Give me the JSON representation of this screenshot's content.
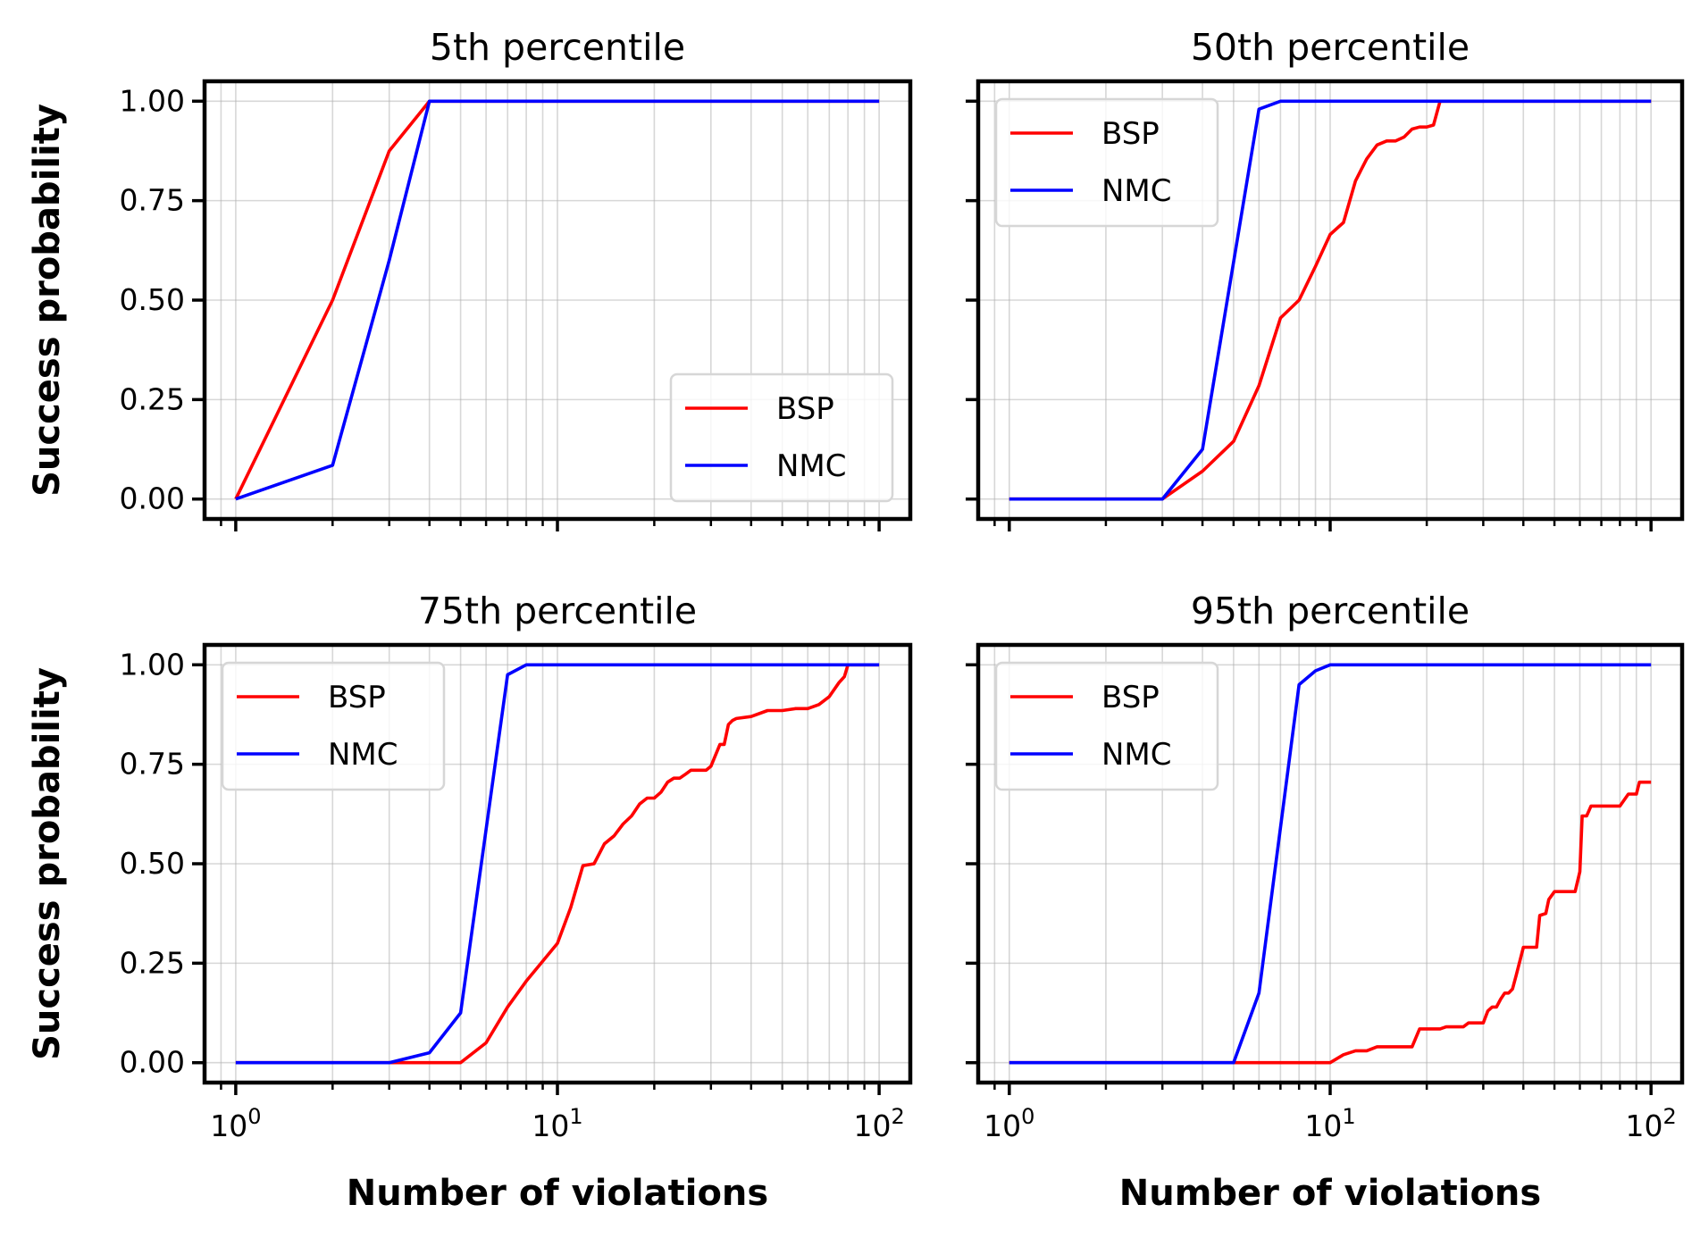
{
  "figure": {
    "ylabel": "Success probability",
    "xlabel": "Number of violations",
    "y_tick_labels": [
      "0.00",
      "0.25",
      "0.50",
      "0.75",
      "1.00"
    ],
    "x_tick_labels": [
      "10^0",
      "10^1",
      "10^2"
    ],
    "colors": {
      "BSP": "#ff0000",
      "NMC": "#0000ff"
    }
  },
  "chart_data": [
    {
      "type": "line",
      "title": "5th percentile",
      "xscale": "log",
      "xlim": [
        0.8,
        125
      ],
      "ylim": [
        -0.05,
        1.05
      ],
      "grid": true,
      "legend_loc": "lower-right",
      "series": [
        {
          "name": "BSP",
          "x": [
            1,
            2,
            3,
            4,
            100
          ],
          "y": [
            0.0,
            0.5,
            0.875,
            1.0,
            1.0
          ]
        },
        {
          "name": "NMC",
          "x": [
            1,
            2,
            3,
            4,
            100
          ],
          "y": [
            0.0,
            0.085,
            0.6,
            1.0,
            1.0
          ]
        }
      ]
    },
    {
      "type": "line",
      "title": "50th percentile",
      "xscale": "log",
      "xlim": [
        0.8,
        125
      ],
      "ylim": [
        -0.05,
        1.05
      ],
      "grid": true,
      "legend_loc": "upper-left",
      "series": [
        {
          "name": "BSP",
          "x": [
            1,
            3,
            4,
            5,
            6,
            7,
            8,
            9,
            10,
            11,
            12,
            13,
            14,
            15,
            16,
            17,
            18,
            19,
            20,
            21,
            22,
            100
          ],
          "y": [
            0.0,
            0.0,
            0.07,
            0.145,
            0.285,
            0.455,
            0.5,
            0.585,
            0.665,
            0.695,
            0.8,
            0.855,
            0.89,
            0.9,
            0.9,
            0.91,
            0.93,
            0.935,
            0.935,
            0.94,
            1.0,
            1.0
          ]
        },
        {
          "name": "NMC",
          "x": [
            1,
            3,
            4,
            6,
            7,
            100
          ],
          "y": [
            0.0,
            0.0,
            0.125,
            0.98,
            1.0,
            1.0
          ]
        }
      ]
    },
    {
      "type": "line",
      "title": "75th percentile",
      "xscale": "log",
      "xlim": [
        0.8,
        125
      ],
      "ylim": [
        -0.05,
        1.05
      ],
      "grid": true,
      "legend_loc": "upper-left",
      "series": [
        {
          "name": "BSP",
          "x": [
            1,
            5,
            6,
            7,
            8,
            9,
            10,
            11,
            12,
            13,
            14,
            15,
            16,
            17,
            18,
            19,
            20,
            21,
            22,
            23,
            24,
            25,
            26,
            27,
            28,
            29,
            30,
            32,
            33,
            34,
            35,
            36,
            40,
            45,
            50,
            55,
            60,
            65,
            70,
            75,
            78,
            80,
            100
          ],
          "y": [
            0.0,
            0.0,
            0.05,
            0.14,
            0.205,
            0.255,
            0.3,
            0.39,
            0.495,
            0.5,
            0.55,
            0.57,
            0.6,
            0.62,
            0.65,
            0.665,
            0.665,
            0.68,
            0.705,
            0.715,
            0.715,
            0.725,
            0.735,
            0.735,
            0.735,
            0.735,
            0.745,
            0.8,
            0.8,
            0.85,
            0.86,
            0.865,
            0.87,
            0.885,
            0.885,
            0.89,
            0.89,
            0.9,
            0.92,
            0.955,
            0.97,
            1.0,
            1.0
          ]
        },
        {
          "name": "NMC",
          "x": [
            1,
            3,
            4,
            5,
            7,
            8,
            100
          ],
          "y": [
            0.0,
            0.0,
            0.025,
            0.125,
            0.975,
            1.0,
            1.0
          ]
        }
      ]
    },
    {
      "type": "line",
      "title": "95th percentile",
      "xscale": "log",
      "xlim": [
        0.8,
        125
      ],
      "ylim": [
        -0.05,
        1.05
      ],
      "grid": true,
      "legend_loc": "upper-left",
      "series": [
        {
          "name": "BSP",
          "x": [
            1,
            10,
            11,
            12,
            13,
            14,
            15,
            17,
            18,
            19,
            22,
            23,
            26,
            27,
            30,
            31,
            32,
            33,
            34,
            35,
            36,
            37,
            38,
            40,
            42,
            44,
            45,
            47,
            48,
            50,
            52,
            55,
            58,
            60,
            61,
            63,
            65,
            70,
            80,
            85,
            90,
            92,
            95,
            100
          ],
          "y": [
            0.0,
            0.0,
            0.02,
            0.03,
            0.03,
            0.04,
            0.04,
            0.04,
            0.04,
            0.085,
            0.085,
            0.09,
            0.09,
            0.1,
            0.1,
            0.13,
            0.14,
            0.14,
            0.16,
            0.175,
            0.175,
            0.185,
            0.22,
            0.29,
            0.29,
            0.29,
            0.37,
            0.375,
            0.41,
            0.43,
            0.43,
            0.43,
            0.43,
            0.48,
            0.62,
            0.62,
            0.645,
            0.645,
            0.645,
            0.675,
            0.675,
            0.705,
            0.705,
            0.705
          ]
        },
        {
          "name": "NMC",
          "x": [
            1,
            5,
            6,
            8,
            9,
            10,
            100
          ],
          "y": [
            0.0,
            0.0,
            0.175,
            0.95,
            0.985,
            1.0,
            1.0
          ]
        }
      ]
    }
  ]
}
